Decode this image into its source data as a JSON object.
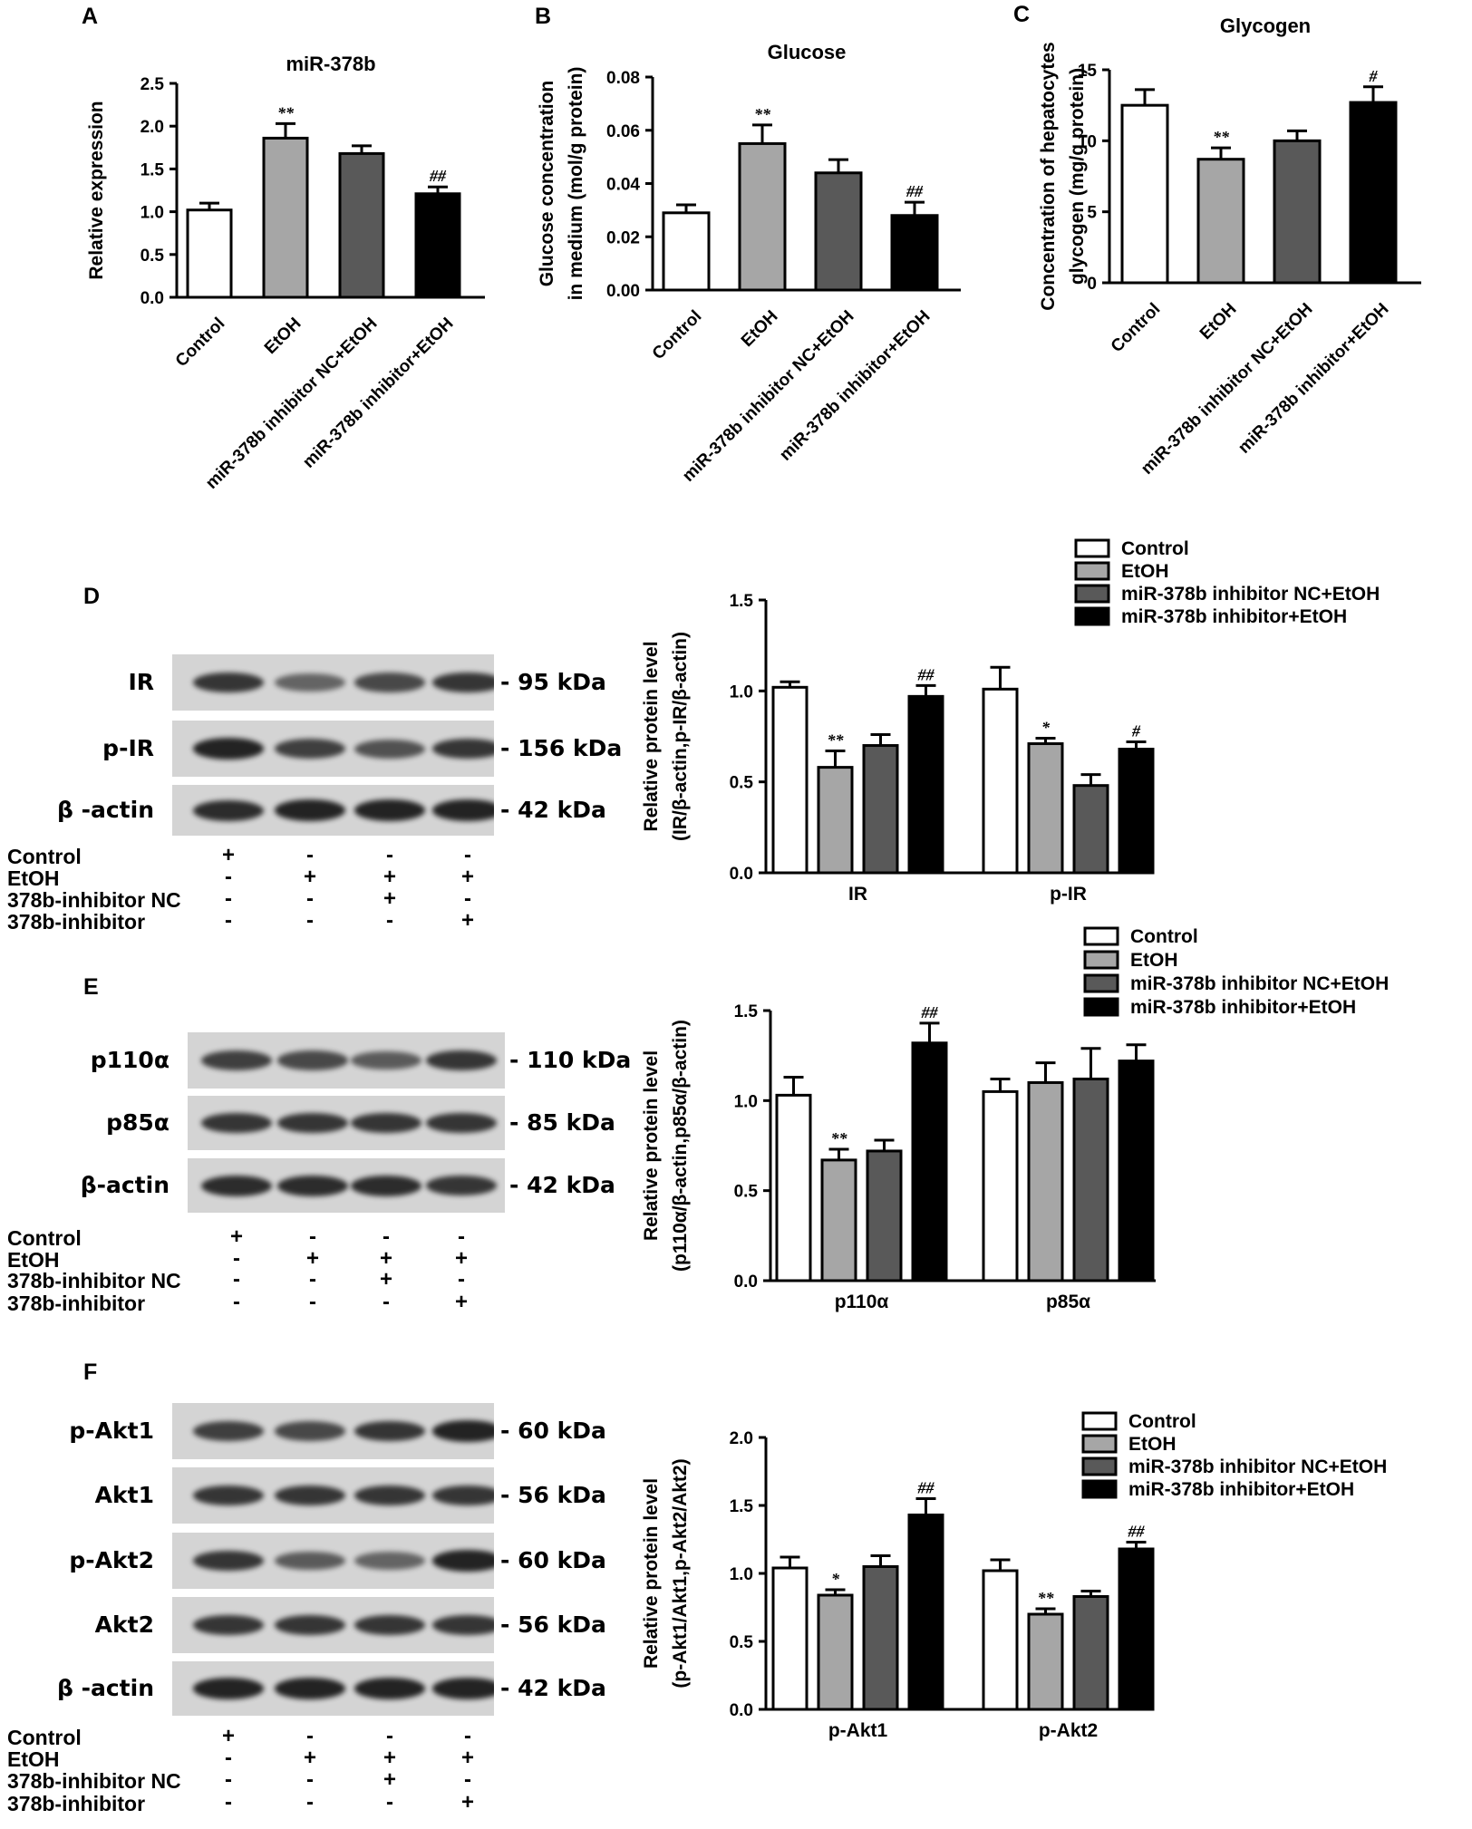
{
  "colors": {
    "control": "#ffffff",
    "etoh": "#a6a6a6",
    "nc": "#595959",
    "inhibitor": "#000000",
    "blot_bg": "#d4d4d4",
    "band": "#1a1a1a"
  },
  "groups": [
    "Control",
    "EtOH",
    "miR-378b inhibitor NC+EtOH",
    "miR-378b inhibitor+EtOH"
  ],
  "panels": {
    "A": "A",
    "B": "B",
    "C": "C",
    "D": "D",
    "E": "E",
    "F": "F"
  },
  "chart_data": [
    {
      "id": "A",
      "type": "bar",
      "title": "miR-378b",
      "ylabel": "Relative  expression",
      "categories": [
        "Control",
        "EtOH",
        "miR-378b inhibitor NC+EtOH",
        "miR-378b inhibitor+EtOH"
      ],
      "values": [
        1.02,
        1.86,
        1.68,
        1.21
      ],
      "errors": [
        0.08,
        0.17,
        0.09,
        0.08
      ],
      "annotations": [
        "",
        "**",
        "",
        "##"
      ],
      "ylim": [
        0,
        2.5
      ],
      "yticks": [
        "0.0",
        "0.5",
        "1.0",
        "1.5",
        "2.0",
        "2.5"
      ]
    },
    {
      "id": "B",
      "type": "bar",
      "title": "Glucose",
      "ylabel_lines": [
        "Glucose concentration",
        "in medium (mol/g protein)"
      ],
      "categories": [
        "Control",
        "EtOH",
        "miR-378b inhibitor NC+EtOH",
        "miR-378b inhibitor+EtOH"
      ],
      "values": [
        0.029,
        0.055,
        0.044,
        0.028
      ],
      "errors": [
        0.003,
        0.007,
        0.005,
        0.005
      ],
      "annotations": [
        "",
        "**",
        "",
        "##"
      ],
      "ylim": [
        0,
        0.08
      ],
      "yticks": [
        "0.00",
        "0.02",
        "0.04",
        "0.06",
        "0.08"
      ]
    },
    {
      "id": "C",
      "type": "bar",
      "title": "Glycogen",
      "ylabel_lines": [
        "Concentration of hepatocytes",
        "glycogen (mg/g protein)"
      ],
      "categories": [
        "Control",
        "EtOH",
        "miR-378b inhibitor NC+EtOH",
        "miR-378b inhibitor+EtOH"
      ],
      "values": [
        12.5,
        8.7,
        10.0,
        12.7
      ],
      "errors": [
        1.1,
        0.8,
        0.7,
        1.1
      ],
      "annotations": [
        "",
        "**",
        "",
        "#"
      ],
      "ylim": [
        0,
        15
      ],
      "yticks": [
        "0",
        "5",
        "10",
        "15"
      ]
    },
    {
      "id": "D",
      "type": "bar",
      "ylabel_lines": [
        "Relative  protein level",
        "(IR/β-actin,p-IR/β-actin)"
      ],
      "categories": [
        "IR",
        "p-IR"
      ],
      "series": [
        {
          "name": "Control",
          "values": [
            1.02,
            1.01
          ],
          "errors": [
            0.03,
            0.12
          ],
          "annotations": [
            "",
            ""
          ]
        },
        {
          "name": "EtOH",
          "values": [
            0.58,
            0.71
          ],
          "errors": [
            0.09,
            0.03
          ],
          "annotations": [
            "**",
            "*"
          ]
        },
        {
          "name": "miR-378b inhibitor NC+EtOH",
          "values": [
            0.7,
            0.48
          ],
          "errors": [
            0.06,
            0.06
          ],
          "annotations": [
            "",
            ""
          ]
        },
        {
          "name": "miR-378b inhibitor+EtOH",
          "values": [
            0.97,
            0.68
          ],
          "errors": [
            0.06,
            0.04
          ],
          "annotations": [
            "##",
            "#"
          ]
        }
      ],
      "ylim": [
        0,
        1.5
      ],
      "yticks": [
        "0.0",
        "0.5",
        "1.0",
        "1.5"
      ],
      "legend": "top-right"
    },
    {
      "id": "E",
      "type": "bar",
      "ylabel_lines": [
        "Relative  protein level",
        "(p110α/β-actin,p85α/β-actin)"
      ],
      "categories": [
        "p110α",
        "p85α"
      ],
      "series": [
        {
          "name": "Control",
          "values": [
            1.03,
            1.05
          ],
          "errors": [
            0.1,
            0.07
          ],
          "annotations": [
            "",
            ""
          ]
        },
        {
          "name": "EtOH",
          "values": [
            0.67,
            1.1
          ],
          "errors": [
            0.06,
            0.11
          ],
          "annotations": [
            "**",
            ""
          ]
        },
        {
          "name": "miR-378b inhibitor NC+EtOH",
          "values": [
            0.72,
            1.12
          ],
          "errors": [
            0.06,
            0.17
          ],
          "annotations": [
            "",
            ""
          ]
        },
        {
          "name": "miR-378b inhibitor+EtOH",
          "values": [
            1.32,
            1.22
          ],
          "errors": [
            0.11,
            0.09
          ],
          "annotations": [
            "##",
            ""
          ]
        }
      ],
      "ylim": [
        0,
        1.5
      ],
      "yticks": [
        "0.0",
        "0.5",
        "1.0",
        "1.5"
      ],
      "legend": "top-right"
    },
    {
      "id": "F",
      "type": "bar",
      "ylabel_lines": [
        "Relative  protein level",
        "(p-Akt1/Akt1,p-Akt2/Akt2)"
      ],
      "categories": [
        "p-Akt1",
        "p-Akt2"
      ],
      "series": [
        {
          "name": "Control",
          "values": [
            1.04,
            1.02
          ],
          "errors": [
            0.08,
            0.08
          ],
          "annotations": [
            "",
            ""
          ]
        },
        {
          "name": "EtOH",
          "values": [
            0.84,
            0.7
          ],
          "errors": [
            0.04,
            0.04
          ],
          "annotations": [
            "*",
            "**"
          ]
        },
        {
          "name": "miR-378b inhibitor NC+EtOH",
          "values": [
            1.05,
            0.83
          ],
          "errors": [
            0.08,
            0.04
          ],
          "annotations": [
            "",
            ""
          ]
        },
        {
          "name": "miR-378b inhibitor+EtOH",
          "values": [
            1.43,
            1.18
          ],
          "errors": [
            0.12,
            0.05
          ],
          "annotations": [
            "##",
            "##"
          ]
        }
      ],
      "ylim": [
        0,
        2.0
      ],
      "yticks": [
        "0.0",
        "0.5",
        "1.0",
        "1.5",
        "2.0"
      ],
      "legend": "top-right"
    }
  ],
  "blots": [
    {
      "id": "D",
      "rows": [
        {
          "label": "IR",
          "kda": "- 95 kDa",
          "intensity": [
            0.85,
            0.6,
            0.75,
            0.85
          ]
        },
        {
          "label": "p-IR",
          "kda": "- 156 kDa",
          "intensity": [
            0.95,
            0.8,
            0.7,
            0.85
          ]
        },
        {
          "label": "β -actin",
          "kda": "- 42 kDa",
          "intensity": [
            0.9,
            0.95,
            0.95,
            0.95
          ]
        }
      ],
      "conditions": [
        {
          "name": "Control",
          "signs": [
            "+",
            "-",
            "-",
            "-"
          ]
        },
        {
          "name": "EtOH",
          "signs": [
            "-",
            "+",
            "+",
            "+"
          ]
        },
        {
          "name": "378b-inhibitor NC",
          "signs": [
            "-",
            "-",
            "+",
            "-"
          ]
        },
        {
          "name": "378b-inhibitor",
          "signs": [
            "-",
            "-",
            "-",
            "+"
          ]
        }
      ]
    },
    {
      "id": "E",
      "rows": [
        {
          "label": "p110α",
          "kda": "- 110 kDa",
          "intensity": [
            0.8,
            0.75,
            0.65,
            0.85
          ]
        },
        {
          "label": "p85α",
          "kda": "- 85 kDa",
          "intensity": [
            0.85,
            0.85,
            0.85,
            0.85
          ]
        },
        {
          "label": "β-actin",
          "kda": "- 42 kDa",
          "intensity": [
            0.9,
            0.9,
            0.9,
            0.85
          ]
        }
      ],
      "conditions": [
        {
          "name": "Control",
          "signs": [
            "+",
            "-",
            "-",
            "-"
          ]
        },
        {
          "name": "EtOH",
          "signs": [
            "-",
            "+",
            "+",
            "+"
          ]
        },
        {
          "name": "378b-inhibitor NC",
          "signs": [
            "-",
            "-",
            "+",
            "-"
          ]
        },
        {
          "name": "378b-inhibitor",
          "signs": [
            "-",
            "-",
            "-",
            "+"
          ]
        }
      ]
    },
    {
      "id": "F",
      "rows": [
        {
          "label": "p-Akt1",
          "kda": "- 60 kDa",
          "intensity": [
            0.8,
            0.75,
            0.85,
            0.95
          ]
        },
        {
          "label": "Akt1",
          "kda": "- 56 kDa",
          "intensity": [
            0.85,
            0.85,
            0.85,
            0.85
          ]
        },
        {
          "label": "p-Akt2",
          "kda": "- 60 kDa",
          "intensity": [
            0.85,
            0.65,
            0.6,
            0.95
          ]
        },
        {
          "label": "Akt2",
          "kda": "- 56 kDa",
          "intensity": [
            0.85,
            0.85,
            0.85,
            0.85
          ]
        },
        {
          "label": "β -actin",
          "kda": "- 42 kDa",
          "intensity": [
            0.95,
            0.95,
            0.95,
            0.95
          ]
        }
      ],
      "conditions": [
        {
          "name": "Control",
          "signs": [
            "+",
            "-",
            "-",
            "-"
          ]
        },
        {
          "name": "EtOH",
          "signs": [
            "-",
            "+",
            "+",
            "+"
          ]
        },
        {
          "name": "378b-inhibitor NC",
          "signs": [
            "-",
            "-",
            "+",
            "-"
          ]
        },
        {
          "name": "378b-inhibitor",
          "signs": [
            "-",
            "-",
            "-",
            "+"
          ]
        }
      ]
    }
  ]
}
